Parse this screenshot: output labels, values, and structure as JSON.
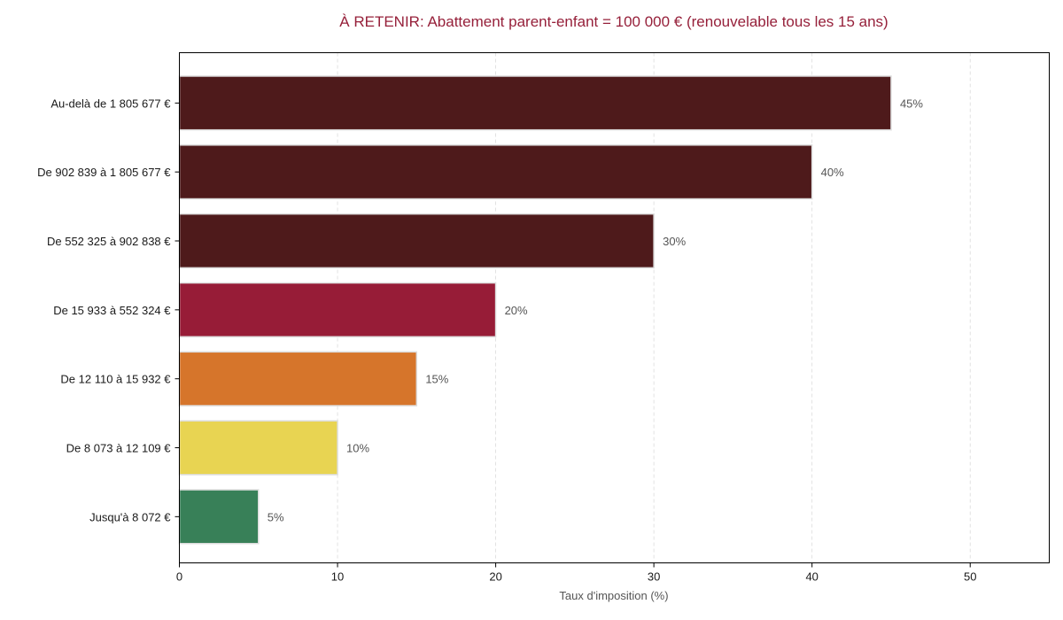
{
  "chart_data": {
    "type": "bar",
    "orientation": "horizontal",
    "title": "À RETENIR: Abattement parent-enfant = 100 000 € (renouvelable tous les 15 ans)",
    "title_color": "#96203a",
    "xlabel": "Taux d'imposition (%)",
    "ylabel": "",
    "xlim": [
      0,
      55
    ],
    "xticks": [
      0,
      10,
      20,
      30,
      40,
      50
    ],
    "grid": "vertical dashed",
    "categories": [
      "Au-delà de 1 805 677 €",
      "De 902 839 à 1 805 677 €",
      "De 552 325 à 902 838 €",
      "De 15 933 à 552 324 €",
      "De 12 110 à 15 932 €",
      "De 8 073 à 12 109 €",
      "Jusqu'à 8 072 €"
    ],
    "values": [
      45,
      40,
      30,
      20,
      15,
      10,
      5
    ],
    "value_labels": [
      "45%",
      "40%",
      "30%",
      "20%",
      "15%",
      "10%",
      "5%"
    ],
    "colors": [
      "#4e1a1b",
      "#4e1a1b",
      "#4e1a1b",
      "#971c37",
      "#d6752b",
      "#e8d452",
      "#388058"
    ]
  }
}
